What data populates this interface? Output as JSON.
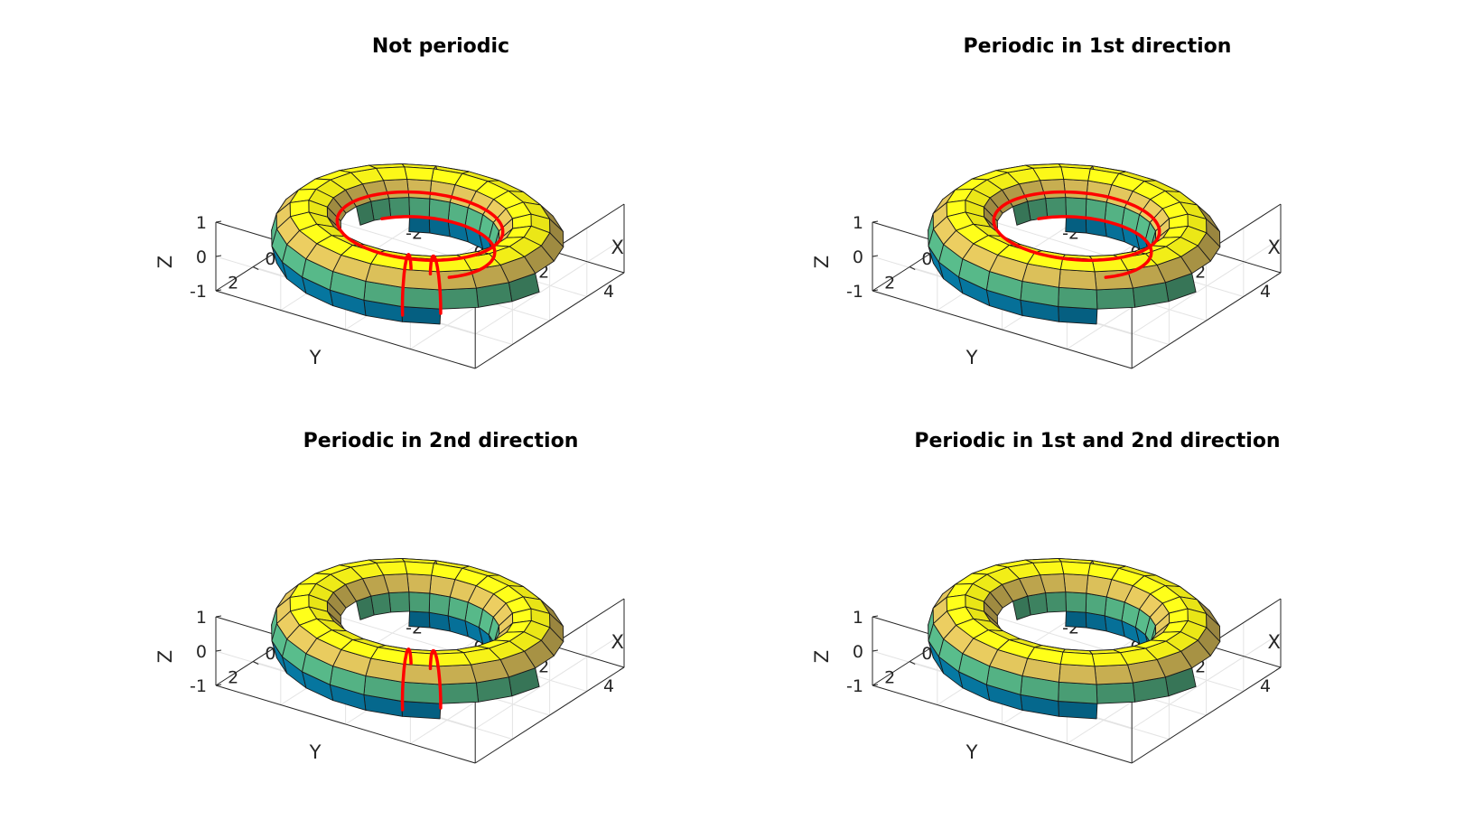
{
  "chart_data": [
    {
      "type": "surface",
      "title": "Not periodic",
      "xlabel": "X",
      "ylabel": "Y",
      "zlabel": "Z",
      "xticks": [
        "-2",
        "0",
        "2",
        "4"
      ],
      "yticks": [
        "-2",
        "0",
        "2"
      ],
      "zticks": [
        "-1",
        "0",
        "1"
      ],
      "xlim": [
        -4,
        4
      ],
      "ylim": [
        -4,
        4
      ],
      "zlim": [
        -1,
        1
      ],
      "surface": {
        "shape": "torus",
        "major_radius": 3,
        "minor_radius": 1,
        "u_panels": 24,
        "v_panels": 12,
        "colormap": "parula"
      },
      "periodic": [
        false,
        false
      ],
      "highlight_seams": [
        "u",
        "v"
      ],
      "highlight_color": "#ff0000"
    },
    {
      "type": "surface",
      "title": "Periodic in 1st direction",
      "xlabel": "X",
      "ylabel": "Y",
      "zlabel": "Z",
      "xticks": [
        "-2",
        "0",
        "2",
        "4"
      ],
      "yticks": [
        "-2",
        "0",
        "2"
      ],
      "zticks": [
        "-1",
        "0",
        "1"
      ],
      "xlim": [
        -4,
        4
      ],
      "ylim": [
        -4,
        4
      ],
      "zlim": [
        -1,
        1
      ],
      "surface": {
        "shape": "torus",
        "major_radius": 3,
        "minor_radius": 1,
        "u_panels": 24,
        "v_panels": 12,
        "colormap": "parula"
      },
      "periodic": [
        true,
        false
      ],
      "highlight_seams": [
        "v"
      ],
      "highlight_color": "#ff0000"
    },
    {
      "type": "surface",
      "title": "Periodic in 2nd direction",
      "xlabel": "X",
      "ylabel": "Y",
      "zlabel": "Z",
      "xticks": [
        "-2",
        "0",
        "2",
        "4"
      ],
      "yticks": [
        "-2",
        "0",
        "2"
      ],
      "zticks": [
        "-1",
        "0",
        "1"
      ],
      "xlim": [
        -4,
        4
      ],
      "ylim": [
        -4,
        4
      ],
      "zlim": [
        -1,
        1
      ],
      "surface": {
        "shape": "torus",
        "major_radius": 3,
        "minor_radius": 1,
        "u_panels": 24,
        "v_panels": 12,
        "colormap": "parula"
      },
      "periodic": [
        false,
        true
      ],
      "highlight_seams": [
        "u"
      ],
      "highlight_color": "#ff0000"
    },
    {
      "type": "surface",
      "title": "Periodic in 1st and 2nd direction",
      "xlabel": "X",
      "ylabel": "Y",
      "zlabel": "Z",
      "xticks": [
        "-2",
        "0",
        "2",
        "4"
      ],
      "yticks": [
        "-2",
        "0",
        "2"
      ],
      "zticks": [
        "-1",
        "0",
        "1"
      ],
      "xlim": [
        -4,
        4
      ],
      "ylim": [
        -4,
        4
      ],
      "zlim": [
        -1,
        1
      ],
      "surface": {
        "shape": "torus",
        "major_radius": 3,
        "minor_radius": 1,
        "u_panels": 24,
        "v_panels": 12,
        "colormap": "parula"
      },
      "periodic": [
        true,
        true
      ],
      "highlight_seams": [],
      "highlight_color": "#ff0000"
    }
  ]
}
